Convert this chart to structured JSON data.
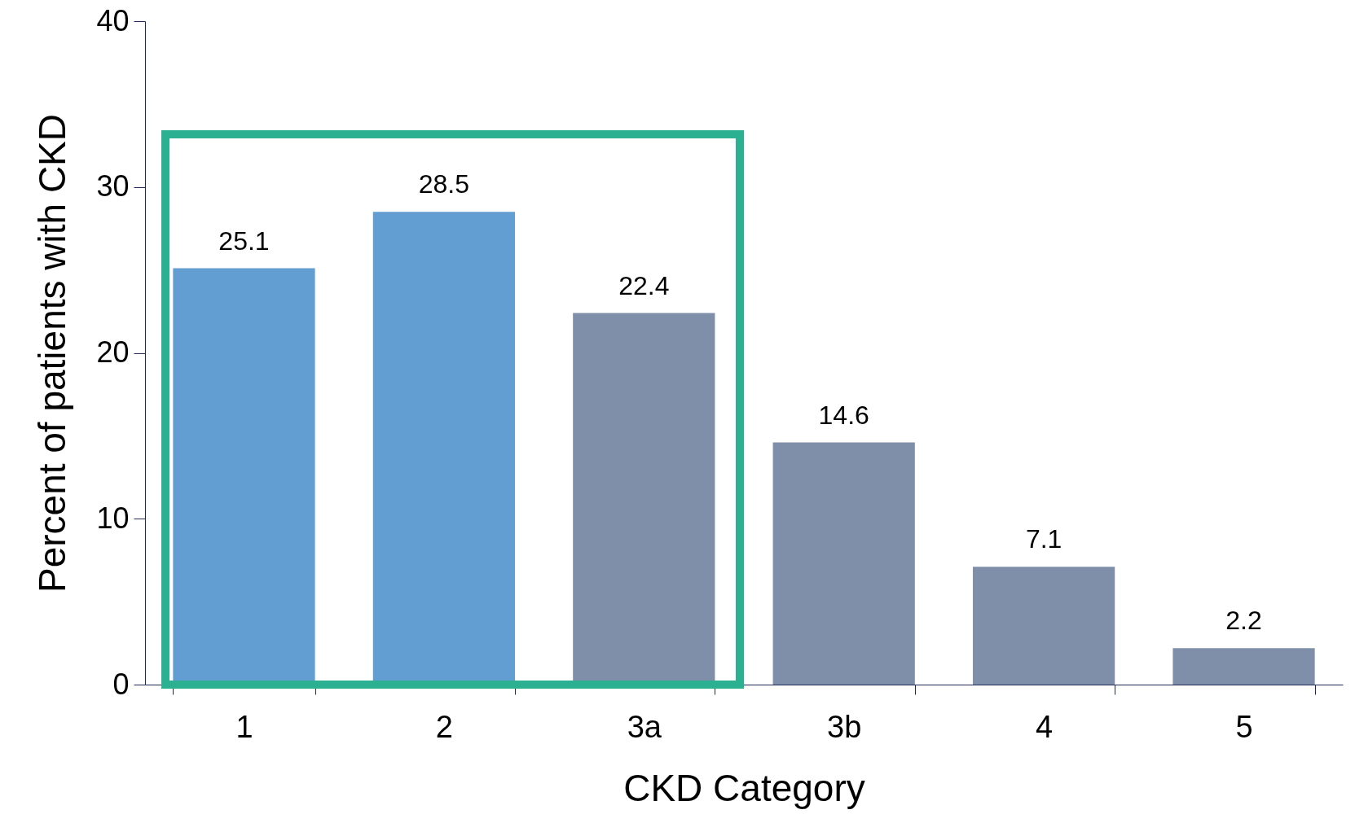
{
  "chart_data": {
    "type": "bar",
    "xlabel": "CKD Category",
    "ylabel": "Percent of patients with CKD",
    "categories": [
      "1",
      "2",
      "3a",
      "3b",
      "4",
      "5"
    ],
    "values": [
      25.1,
      28.5,
      22.4,
      14.6,
      7.1,
      2.2
    ],
    "colors": [
      "#629ed1",
      "#629ed1",
      "#808fa9",
      "#808fa9",
      "#808fa9",
      "#808fa9"
    ],
    "ylim": [
      0,
      40
    ],
    "yticks": [
      0,
      10,
      20,
      30,
      40
    ],
    "grid": false,
    "data_labels": true
  }
}
